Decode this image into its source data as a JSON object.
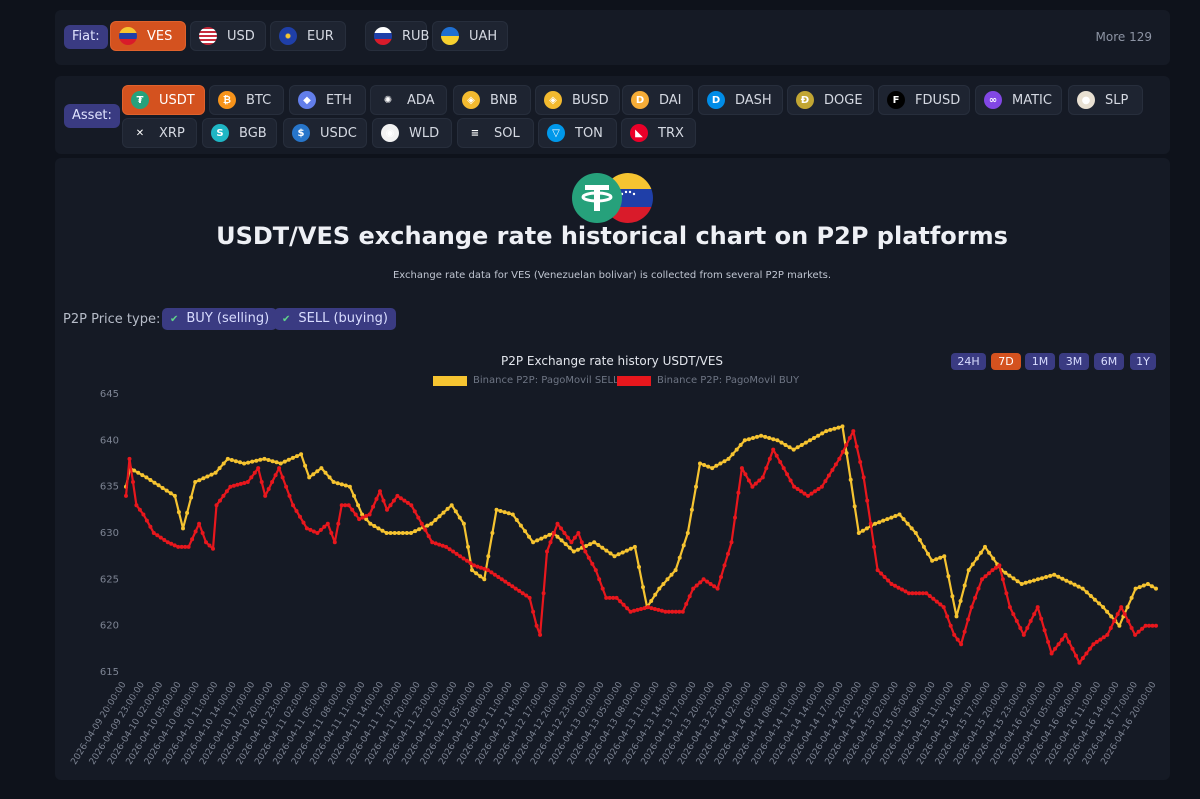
{
  "fiat": {
    "label": "Fiat:",
    "more": "More 129",
    "options": [
      {
        "code": "VES",
        "active": true,
        "flag": "ve-flag"
      },
      {
        "code": "USD",
        "active": false,
        "flag": "us-flag"
      },
      {
        "code": "EUR",
        "active": false,
        "flag": "eu-flag"
      },
      {
        "code": "RUB",
        "active": false,
        "flag": "ru-flag"
      },
      {
        "code": "UAH",
        "active": false,
        "flag": "ua-flag"
      }
    ]
  },
  "asset": {
    "label": "Asset:",
    "options": [
      {
        "code": "USDT",
        "active": true,
        "color": "#26a17b",
        "glyph": "₮"
      },
      {
        "code": "BTC",
        "active": false,
        "color": "#f7931a",
        "glyph": "₿"
      },
      {
        "code": "ETH",
        "active": false,
        "color": "#627eea",
        "glyph": "◆"
      },
      {
        "code": "ADA",
        "active": false,
        "color": "#1e2431",
        "glyph": "✺"
      },
      {
        "code": "BNB",
        "active": false,
        "color": "#f3ba2f",
        "glyph": "◈"
      },
      {
        "code": "BUSD",
        "active": false,
        "color": "#f3ba2f",
        "glyph": "◈"
      },
      {
        "code": "DAI",
        "active": false,
        "color": "#f5ac37",
        "glyph": "D"
      },
      {
        "code": "DASH",
        "active": false,
        "color": "#008ce7",
        "glyph": "D"
      },
      {
        "code": "DOGE",
        "active": false,
        "color": "#c2a633",
        "glyph": "Ð"
      },
      {
        "code": "FDUSD",
        "active": false,
        "color": "#000000",
        "glyph": "F"
      },
      {
        "code": "MATIC",
        "active": false,
        "color": "#8247e5",
        "glyph": "∞"
      },
      {
        "code": "SLP",
        "active": false,
        "color": "#e8e0d2",
        "glyph": "●"
      },
      {
        "code": "XRP",
        "active": false,
        "color": "#1e2431",
        "glyph": "✕"
      },
      {
        "code": "BGB",
        "active": false,
        "color": "#1fb6c4",
        "glyph": "S"
      },
      {
        "code": "USDC",
        "active": false,
        "color": "#2775ca",
        "glyph": "$"
      },
      {
        "code": "WLD",
        "active": false,
        "color": "#f2f2f2",
        "glyph": "◉"
      },
      {
        "code": "SOL",
        "active": false,
        "color": "#1e2431",
        "glyph": "≡"
      },
      {
        "code": "TON",
        "active": false,
        "color": "#0098ea",
        "glyph": "▽"
      },
      {
        "code": "TRX",
        "active": false,
        "color": "#eb0029",
        "glyph": "◣"
      }
    ]
  },
  "page": {
    "title": "USDT/VES exchange rate historical chart on P2P platforms",
    "subtitle": "Exchange rate data for VES (Venezuelan bolivar) is collected from several P2P markets."
  },
  "price_type": {
    "label": "P2P Price type:",
    "options": [
      {
        "label": "BUY (selling)",
        "checked": true
      },
      {
        "label": "SELL (buying)",
        "checked": true
      }
    ]
  },
  "ranges": [
    {
      "label": "24H",
      "active": false
    },
    {
      "label": "7D",
      "active": true
    },
    {
      "label": "1M",
      "active": false
    },
    {
      "label": "3M",
      "active": false
    },
    {
      "label": "6M",
      "active": false
    },
    {
      "label": "1Y",
      "active": false
    }
  ],
  "chart_data": {
    "type": "line",
    "title": "P2P Exchange rate history USDT/VES",
    "legend_placement": "top-center",
    "grid": false,
    "ylim": [
      615,
      645
    ],
    "yticks": [
      615,
      620,
      625,
      630,
      635,
      640,
      645
    ],
    "x_start": "2026-04-09 20:00",
    "x_end": "2026-04-16 20:00",
    "x_step_hours": 3,
    "x_tick_labels": [
      "2026-04-09 20:00:00",
      "2026-04-09 23:00:00",
      "2026-04-10 02:00:00",
      "2026-04-10 05:00:00",
      "2026-04-10 08:00:00",
      "2026-04-10 11:00:00",
      "2026-04-10 14:00:00",
      "2026-04-10 17:00:00",
      "2026-04-10 20:00:00",
      "2026-04-10 23:00:00",
      "2026-04-11 02:00:00",
      "2026-04-11 05:00:00",
      "2026-04-11 08:00:00",
      "2026-04-11 11:00:00",
      "2026-04-11 14:00:00",
      "2026-04-11 17:00:00",
      "2026-04-11 20:00:00",
      "2026-04-11 23:00:00",
      "2026-04-12 02:00:00",
      "2026-04-12 05:00:00",
      "2026-04-12 08:00:00",
      "2026-04-12 11:00:00",
      "2026-04-12 14:00:00",
      "2026-04-12 17:00:00",
      "2026-04-12 20:00:00",
      "2026-04-12 23:00:00",
      "2026-04-13 02:00:00",
      "2026-04-13 05:00:00",
      "2026-04-13 08:00:00",
      "2026-04-13 11:00:00",
      "2026-04-13 14:00:00",
      "2026-04-13 17:00:00",
      "2026-04-13 20:00:00",
      "2026-04-13 23:00:00",
      "2026-04-14 02:00:00",
      "2026-04-14 05:00:00",
      "2026-04-14 08:00:00",
      "2026-04-14 11:00:00",
      "2026-04-14 14:00:00",
      "2026-04-14 17:00:00",
      "2026-04-14 20:00:00",
      "2026-04-14 23:00:00",
      "2026-04-15 02:00:00",
      "2026-04-15 05:00:00",
      "2026-04-15 08:00:00",
      "2026-04-15 11:00:00",
      "2026-04-15 14:00:00",
      "2026-04-15 17:00:00",
      "2026-04-15 20:00:00",
      "2026-04-15 23:00:00",
      "2026-04-16 02:00:00",
      "2026-04-16 05:00:00",
      "2026-04-16 08:00:00",
      "2026-04-16 11:00:00",
      "2026-04-16 14:00:00",
      "2026-04-16 17:00:00",
      "2026-04-16 20:00:00"
    ],
    "series": [
      {
        "name": "Binance P2P: PagoMovil SELL",
        "color": "#f6c431",
        "anchors": [
          [
            0,
            635
          ],
          [
            1,
            637
          ],
          [
            5,
            636
          ],
          [
            12,
            634
          ],
          [
            14,
            630.5
          ],
          [
            17,
            635.5
          ],
          [
            22,
            636.5
          ],
          [
            25,
            638
          ],
          [
            29,
            637.5
          ],
          [
            34,
            638
          ],
          [
            38,
            637.5
          ],
          [
            43,
            638.5
          ],
          [
            45,
            636
          ],
          [
            48,
            637
          ],
          [
            51,
            635.5
          ],
          [
            55,
            635
          ],
          [
            58,
            632
          ],
          [
            60,
            631
          ],
          [
            64,
            630
          ],
          [
            70,
            630
          ],
          [
            75,
            631
          ],
          [
            80,
            633
          ],
          [
            83,
            631
          ],
          [
            85,
            626
          ],
          [
            88,
            625
          ],
          [
            91,
            632.5
          ],
          [
            95,
            632
          ],
          [
            100,
            629
          ],
          [
            105,
            630
          ],
          [
            110,
            628
          ],
          [
            115,
            629
          ],
          [
            120,
            627.5
          ],
          [
            125,
            628.5
          ],
          [
            128,
            622
          ],
          [
            131,
            624
          ],
          [
            135,
            626
          ],
          [
            138,
            630
          ],
          [
            141,
            637.5
          ],
          [
            144,
            637
          ],
          [
            148,
            638
          ],
          [
            152,
            640
          ],
          [
            156,
            640.5
          ],
          [
            160,
            640
          ],
          [
            164,
            639
          ],
          [
            168,
            640
          ],
          [
            172,
            641
          ],
          [
            176,
            641.5
          ],
          [
            180,
            630
          ],
          [
            184,
            631
          ],
          [
            190,
            632
          ],
          [
            194,
            630
          ],
          [
            198,
            627
          ],
          [
            201,
            627.5
          ],
          [
            204,
            621
          ],
          [
            207,
            626
          ],
          [
            211,
            628.5
          ],
          [
            215,
            626
          ],
          [
            220,
            624.5
          ],
          [
            228,
            625.5
          ],
          [
            235,
            624
          ],
          [
            240,
            622
          ],
          [
            244,
            620
          ],
          [
            248,
            624
          ],
          [
            251,
            624.5
          ],
          [
            253,
            624
          ]
        ]
      },
      {
        "name": "Binance P2P: PagoMovil BUY",
        "color": "#e8171d",
        "anchors": [
          [
            0,
            634
          ],
          [
            1,
            638
          ],
          [
            3,
            633
          ],
          [
            5,
            632
          ],
          [
            8,
            630
          ],
          [
            12,
            629
          ],
          [
            15,
            628.5
          ],
          [
            18,
            628.5
          ],
          [
            21,
            631
          ],
          [
            23,
            629
          ],
          [
            25,
            628.3
          ],
          [
            26,
            633
          ],
          [
            30,
            635
          ],
          [
            35,
            635.5
          ],
          [
            38,
            637
          ],
          [
            40,
            634
          ],
          [
            44,
            637
          ],
          [
            48,
            633
          ],
          [
            52,
            630.5
          ],
          [
            55,
            630
          ],
          [
            58,
            631
          ],
          [
            60,
            629
          ],
          [
            62,
            633
          ],
          [
            64,
            633
          ],
          [
            67,
            631.5
          ],
          [
            70,
            632
          ],
          [
            73,
            634.5
          ],
          [
            75,
            632.5
          ],
          [
            78,
            634
          ],
          [
            82,
            633
          ],
          [
            85,
            631
          ],
          [
            88,
            629
          ],
          [
            92,
            628.5
          ],
          [
            96,
            627.5
          ],
          [
            100,
            626.5
          ],
          [
            104,
            626
          ],
          [
            108,
            625
          ],
          [
            112,
            624
          ],
          [
            116,
            623
          ],
          [
            118,
            620
          ],
          [
            119,
            619
          ],
          [
            121,
            628
          ],
          [
            124,
            631
          ],
          [
            128,
            629
          ],
          [
            130,
            630
          ],
          [
            132,
            628
          ],
          [
            135,
            626
          ],
          [
            138,
            623
          ],
          [
            141,
            623
          ],
          [
            145,
            621.5
          ],
          [
            150,
            622
          ],
          [
            155,
            621.5
          ],
          [
            160,
            621.5
          ],
          [
            163,
            624
          ],
          [
            166,
            625
          ],
          [
            170,
            624
          ],
          [
            174,
            629
          ],
          [
            177,
            637
          ],
          [
            180,
            635
          ],
          [
            183,
            636
          ],
          [
            186,
            639
          ],
          [
            189,
            637
          ],
          [
            192,
            635
          ],
          [
            196,
            634
          ],
          [
            200,
            635
          ],
          [
            205,
            638
          ],
          [
            209,
            641
          ],
          [
            212,
            636
          ],
          [
            216,
            626
          ],
          [
            220,
            624.5
          ],
          [
            225,
            623.5
          ],
          [
            230,
            623.5
          ],
          [
            235,
            622
          ],
          [
            238,
            619
          ],
          [
            240,
            618
          ],
          [
            243,
            622
          ],
          [
            246,
            625
          ],
          [
            249,
            626
          ],
          [
            251,
            626.5
          ],
          [
            254,
            622
          ],
          [
            258,
            619
          ],
          [
            262,
            622
          ],
          [
            266,
            617
          ],
          [
            270,
            619
          ],
          [
            274,
            616
          ],
          [
            278,
            618
          ],
          [
            282,
            619
          ],
          [
            286,
            622
          ],
          [
            290,
            619
          ],
          [
            293,
            620
          ],
          [
            296,
            620
          ]
        ]
      }
    ]
  }
}
